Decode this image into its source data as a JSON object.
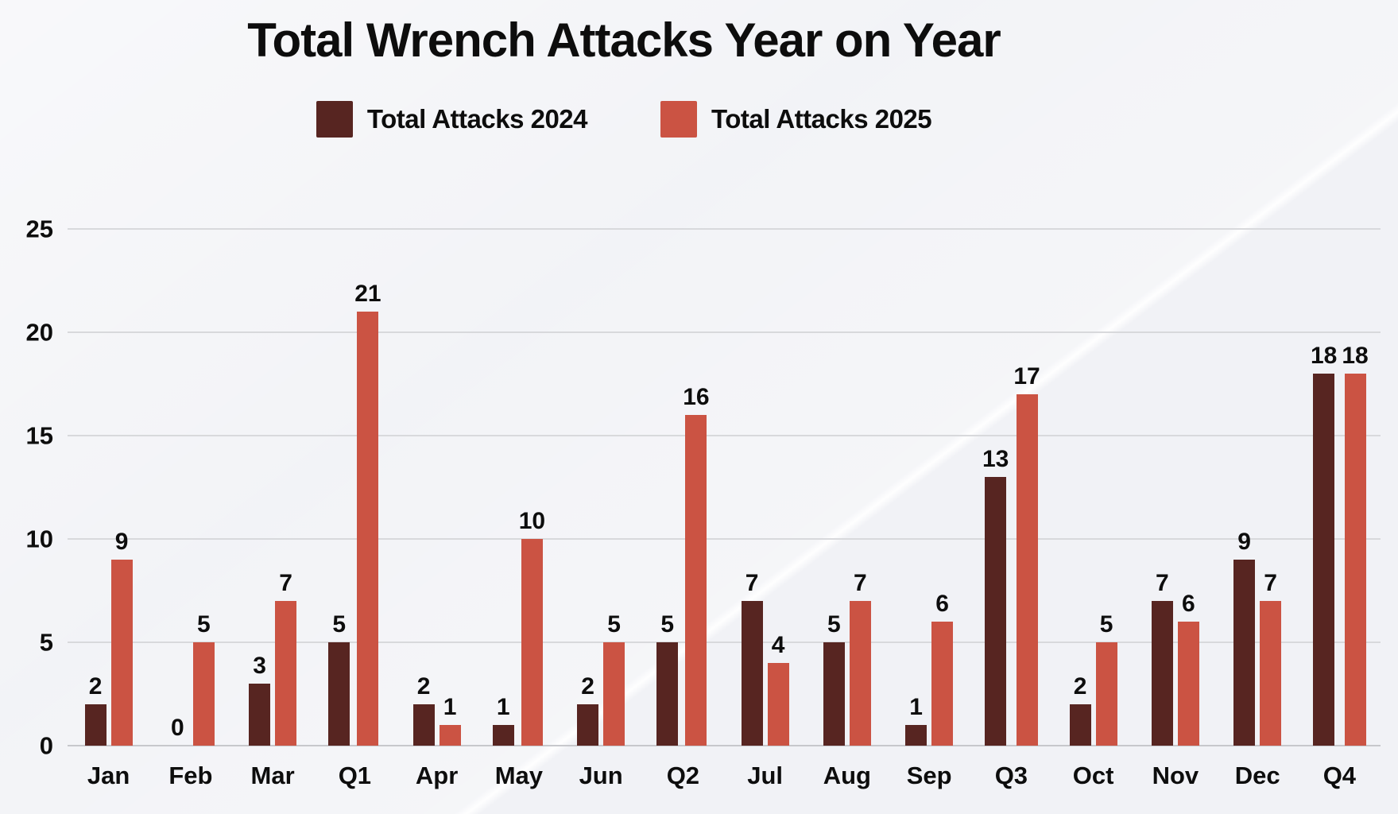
{
  "title": "Total Wrench Attacks Year on Year",
  "legend": [
    {
      "label": "Total Attacks 2024",
      "color": "#572521"
    },
    {
      "label": "Total Attacks 2025",
      "color": "#cb5343"
    }
  ],
  "colors": {
    "background": "#f1f2f6",
    "gridline": "#d8d9dc",
    "text": "#0d0d0d",
    "series_2024": "#572521",
    "series_2025": "#cb5343"
  },
  "chart_data": {
    "type": "bar",
    "title": "Total Wrench Attacks Year on Year",
    "categories": [
      "Jan",
      "Feb",
      "Mar",
      "Q1",
      "Apr",
      "May",
      "Jun",
      "Q2",
      "Jul",
      "Aug",
      "Sep",
      "Q3",
      "Oct",
      "Nov",
      "Dec",
      "Q4"
    ],
    "series": [
      {
        "name": "Total Attacks 2024",
        "color": "#572521",
        "values": [
          2,
          0,
          3,
          5,
          2,
          1,
          2,
          5,
          7,
          5,
          1,
          13,
          2,
          7,
          9,
          18
        ]
      },
      {
        "name": "Total Attacks 2025",
        "color": "#cb5343",
        "values": [
          9,
          5,
          7,
          21,
          1,
          10,
          5,
          16,
          4,
          7,
          6,
          17,
          5,
          6,
          7,
          18
        ]
      }
    ],
    "xlabel": "",
    "ylabel": "",
    "ylim": [
      0,
      25
    ],
    "y_ticks": [
      0,
      5,
      10,
      15,
      20,
      25
    ],
    "grid": true,
    "legend_position": "top",
    "show_value_labels": true
  }
}
